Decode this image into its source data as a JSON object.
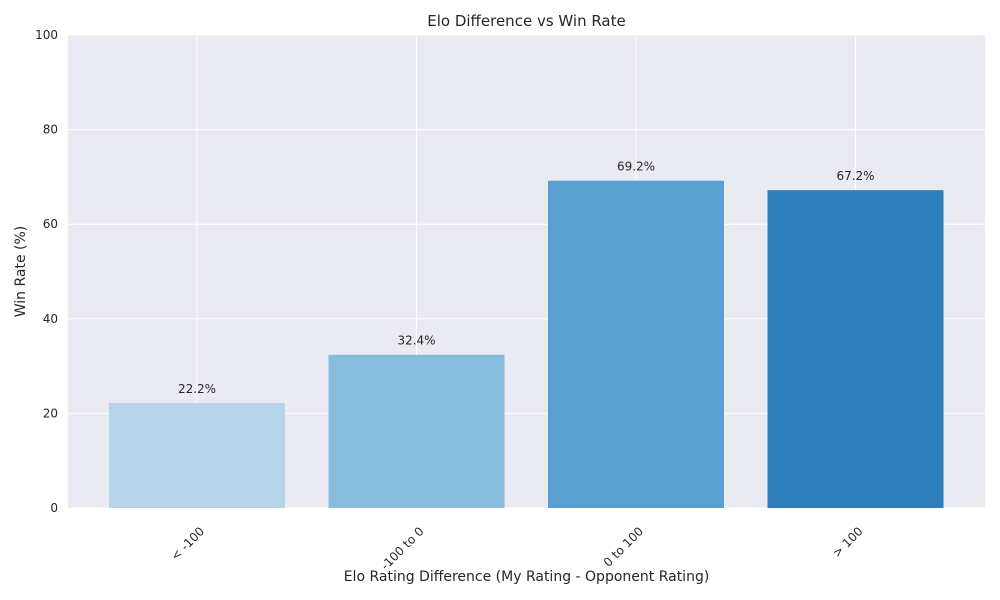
{
  "chart_data": {
    "type": "bar",
    "title": "Elo Difference vs Win Rate",
    "xlabel": "Elo Rating Difference (My Rating - Opponent Rating)",
    "ylabel": "Win Rate (%)",
    "categories": [
      "< -100",
      "-100 to 0",
      "0 to 100",
      "> 100"
    ],
    "values": [
      22.2,
      32.4,
      69.2,
      67.2
    ],
    "data_labels": [
      "22.2%",
      "32.4%",
      "69.2%",
      "67.2%"
    ],
    "colors": [
      "#b7d4ea",
      "#87bcdc",
      "#57a0cf",
      "#2f7ebc"
    ],
    "ylim": [
      0,
      100
    ],
    "yticks": [
      0,
      20,
      40,
      60,
      80,
      100
    ],
    "grid": true,
    "background": "#eaeaf2",
    "legend": "none",
    "xtick_rotation": -45
  }
}
